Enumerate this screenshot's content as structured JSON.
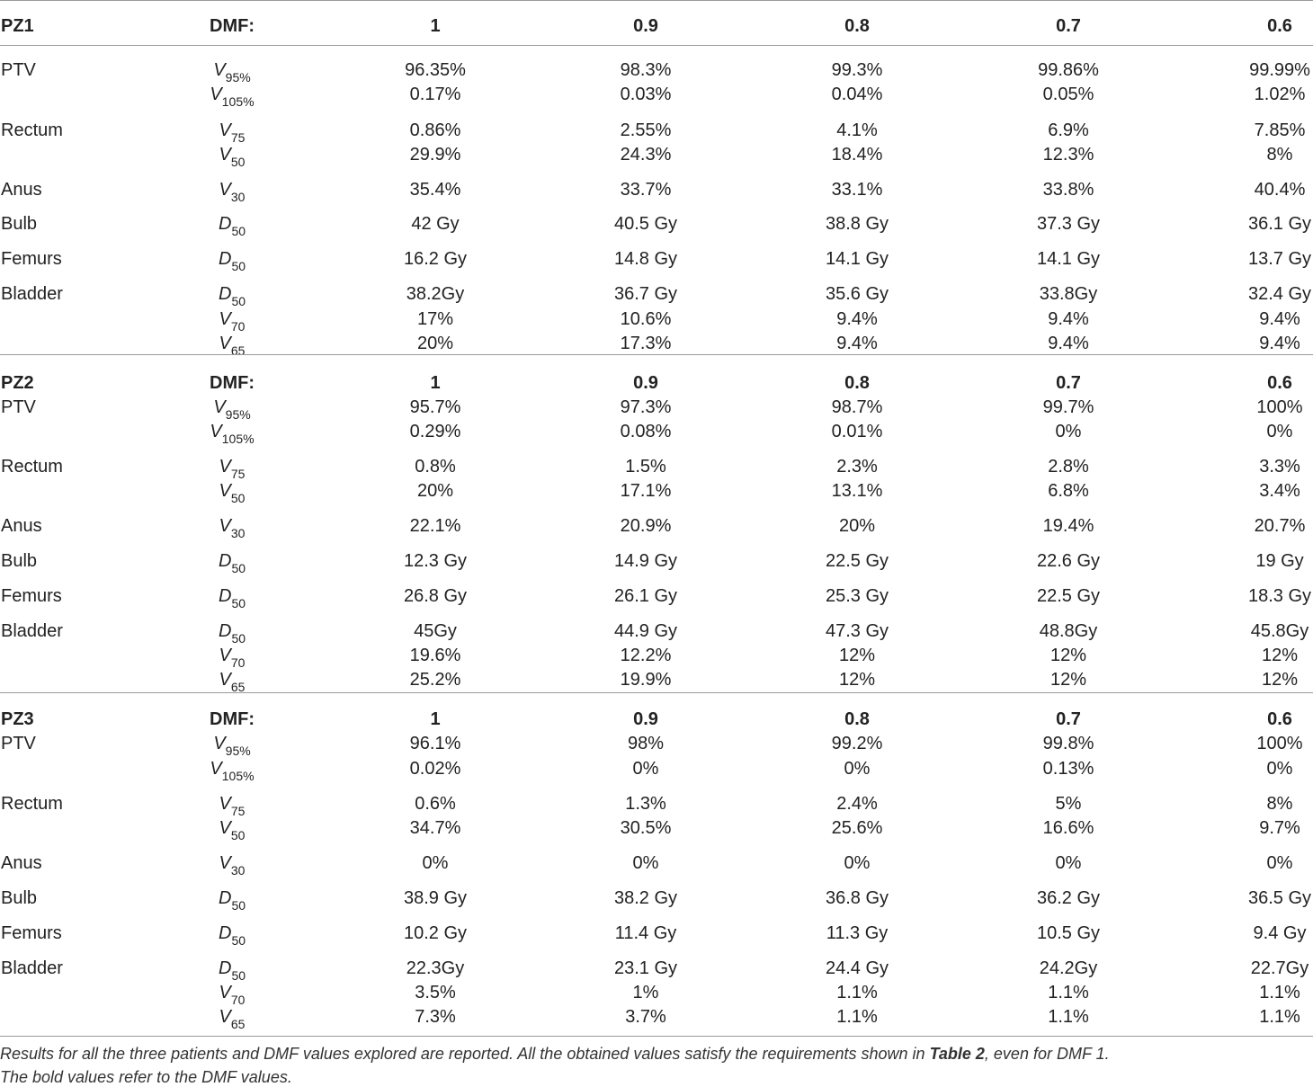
{
  "table": {
    "sections": [
      {
        "patient": "PZ1",
        "dmf_label": "DMF:",
        "dmf_values": [
          "1",
          "0.9",
          "0.8",
          "0.7",
          "0.6"
        ],
        "rows": [
          {
            "organ": "PTV",
            "metric": "V",
            "sub": "95%",
            "values": [
              "96.35%",
              "98.3%",
              "99.3%",
              "99.86%",
              "99.99%"
            ]
          },
          {
            "organ": "",
            "metric": "V",
            "sub": "105%",
            "values": [
              "0.17%",
              "0.03%",
              "0.04%",
              "0.05%",
              "1.02%"
            ]
          },
          {
            "organ": "Rectum",
            "metric": "V",
            "sub": "75",
            "values": [
              "0.86%",
              "2.55%",
              "4.1%",
              "6.9%",
              "7.85%"
            ]
          },
          {
            "organ": "",
            "metric": "V",
            "sub": "50",
            "values": [
              "29.9%",
              "24.3%",
              "18.4%",
              "12.3%",
              "8%"
            ]
          },
          {
            "organ": "Anus",
            "metric": "V",
            "sub": "30",
            "values": [
              "35.4%",
              "33.7%",
              "33.1%",
              "33.8%",
              "40.4%"
            ]
          },
          {
            "organ": "Bulb",
            "metric": "D",
            "sub": "50",
            "values": [
              "42 Gy",
              "40.5 Gy",
              "38.8 Gy",
              "37.3 Gy",
              "36.1 Gy"
            ]
          },
          {
            "organ": "Femurs",
            "metric": "D",
            "sub": "50",
            "values": [
              "16.2 Gy",
              "14.8 Gy",
              "14.1 Gy",
              "14.1 Gy",
              "13.7 Gy"
            ]
          },
          {
            "organ": "Bladder",
            "metric": "D",
            "sub": "50",
            "values": [
              "38.2Gy",
              "36.7 Gy",
              "35.6 Gy",
              "33.8Gy",
              "32.4 Gy"
            ]
          },
          {
            "organ": "",
            "metric": "V",
            "sub": "70",
            "values": [
              "17%",
              "10.6%",
              "9.4%",
              "9.4%",
              "9.4%"
            ]
          },
          {
            "organ": "",
            "metric": "V",
            "sub": "65",
            "values": [
              "20%",
              "17.3%",
              "9.4%",
              "9.4%",
              "9.4%"
            ]
          }
        ]
      },
      {
        "patient": "PZ2",
        "dmf_label": "DMF:",
        "dmf_values": [
          "1",
          "0.9",
          "0.8",
          "0.7",
          "0.6"
        ],
        "rows": [
          {
            "organ": "PTV",
            "metric": "V",
            "sub": "95%",
            "values": [
              "95.7%",
              "97.3%",
              "98.7%",
              "99.7%",
              "100%"
            ]
          },
          {
            "organ": "",
            "metric": "V",
            "sub": "105%",
            "values": [
              "0.29%",
              "0.08%",
              "0.01%",
              "0%",
              "0%"
            ]
          },
          {
            "organ": "Rectum",
            "metric": "V",
            "sub": "75",
            "values": [
              "0.8%",
              "1.5%",
              "2.3%",
              "2.8%",
              "3.3%"
            ]
          },
          {
            "organ": "",
            "metric": "V",
            "sub": "50",
            "values": [
              "20%",
              "17.1%",
              "13.1%",
              "6.8%",
              "3.4%"
            ]
          },
          {
            "organ": "Anus",
            "metric": "V",
            "sub": "30",
            "values": [
              "22.1%",
              "20.9%",
              "20%",
              "19.4%",
              "20.7%"
            ]
          },
          {
            "organ": "Bulb",
            "metric": "D",
            "sub": "50",
            "values": [
              "12.3 Gy",
              "14.9 Gy",
              "22.5 Gy",
              "22.6 Gy",
              "19 Gy"
            ]
          },
          {
            "organ": "Femurs",
            "metric": "D",
            "sub": "50",
            "values": [
              "26.8 Gy",
              "26.1 Gy",
              "25.3 Gy",
              "22.5 Gy",
              "18.3 Gy"
            ]
          },
          {
            "organ": "Bladder",
            "metric": "D",
            "sub": "50",
            "values": [
              "45Gy",
              "44.9 Gy",
              "47.3 Gy",
              "48.8Gy",
              "45.8Gy"
            ]
          },
          {
            "organ": "",
            "metric": "V",
            "sub": "70",
            "values": [
              "19.6%",
              "12.2%",
              "12%",
              "12%",
              "12%"
            ]
          },
          {
            "organ": "",
            "metric": "V",
            "sub": "65",
            "values": [
              "25.2%",
              "19.9%",
              "12%",
              "12%",
              "12%"
            ]
          }
        ]
      },
      {
        "patient": "PZ3",
        "dmf_label": "DMF:",
        "dmf_values": [
          "1",
          "0.9",
          "0.8",
          "0.7",
          "0.6"
        ],
        "rows": [
          {
            "organ": "PTV",
            "metric": "V",
            "sub": "95%",
            "values": [
              "96.1%",
              "98%",
              "99.2%",
              "99.8%",
              "100%"
            ]
          },
          {
            "organ": "",
            "metric": "V",
            "sub": "105%",
            "values": [
              "0.02%",
              "0%",
              "0%",
              "0.13%",
              "0%"
            ]
          },
          {
            "organ": "Rectum",
            "metric": "V",
            "sub": "75",
            "values": [
              "0.6%",
              "1.3%",
              "2.4%",
              "5%",
              "8%"
            ]
          },
          {
            "organ": "",
            "metric": "V",
            "sub": "50",
            "values": [
              "34.7%",
              "30.5%",
              "25.6%",
              "16.6%",
              "9.7%"
            ]
          },
          {
            "organ": "Anus",
            "metric": "V",
            "sub": "30",
            "values": [
              "0%",
              "0%",
              "0%",
              "0%",
              "0%"
            ]
          },
          {
            "organ": "Bulb",
            "metric": "D",
            "sub": "50",
            "values": [
              "38.9 Gy",
              "38.2 Gy",
              "36.8 Gy",
              "36.2 Gy",
              "36.5 Gy"
            ]
          },
          {
            "organ": "Femurs",
            "metric": "D",
            "sub": "50",
            "values": [
              "10.2 Gy",
              "11.4 Gy",
              "11.3 Gy",
              "10.5 Gy",
              "9.4 Gy"
            ]
          },
          {
            "organ": "Bladder",
            "metric": "D",
            "sub": "50",
            "values": [
              "22.3Gy",
              "23.1 Gy",
              "24.4 Gy",
              "24.2Gy",
              "22.7Gy"
            ]
          },
          {
            "organ": "",
            "metric": "V",
            "sub": "70",
            "values": [
              "3.5%",
              "1%",
              "1.1%",
              "1.1%",
              "1.1%"
            ]
          },
          {
            "organ": "",
            "metric": "V",
            "sub": "65",
            "values": [
              "7.3%",
              "3.7%",
              "1.1%",
              "1.1%",
              "1.1%"
            ]
          }
        ]
      }
    ]
  },
  "footnote": {
    "line1_before": "Results for all the three patients and DMF values explored are reported. All the obtained values satisfy the requirements shown in ",
    "line1_ref": "Table 2",
    "line1_after": ", even for DMF 1.",
    "line2": "The bold values refer to the DMF values."
  }
}
